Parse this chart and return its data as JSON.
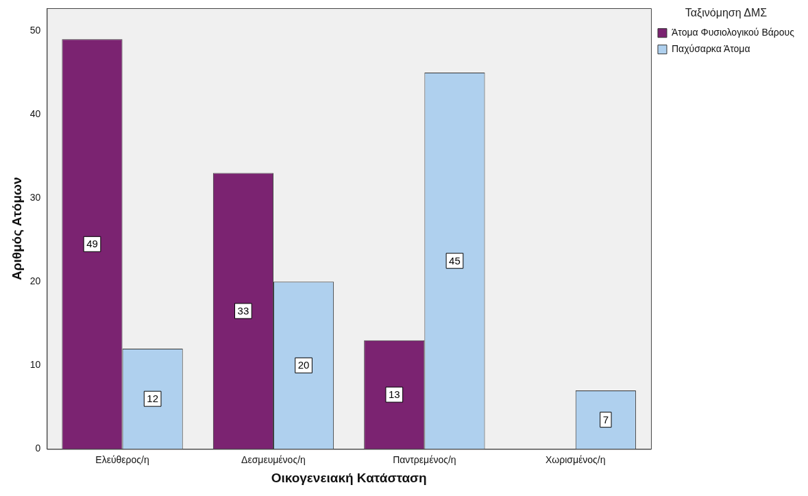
{
  "chart_data": {
    "type": "bar",
    "xlabel": "Οικογενειακή Κατάσταση",
    "ylabel": "Αριθμός Ατόμων",
    "legend_title": "Ταξινόμηση ΔΜΣ",
    "categories": [
      "Ελεύθερος/η",
      "Δεσμευμένος/η",
      "Παντρεμένος/η",
      "Χωρισμένος/η"
    ],
    "series": [
      {
        "name": "Άτομα Φυσιολογικού Βάρους",
        "color": "#7b2371",
        "values": [
          49,
          33,
          13,
          null
        ]
      },
      {
        "name": "Παχύσαρκα Άτομα",
        "color": "#afd0ee",
        "values": [
          12,
          20,
          45,
          7
        ]
      }
    ],
    "ylim": [
      0,
      52.7
    ],
    "yticks": [
      0,
      10,
      20,
      30,
      40,
      50
    ],
    "grid": false,
    "legend": "top right",
    "data_labels": true
  }
}
